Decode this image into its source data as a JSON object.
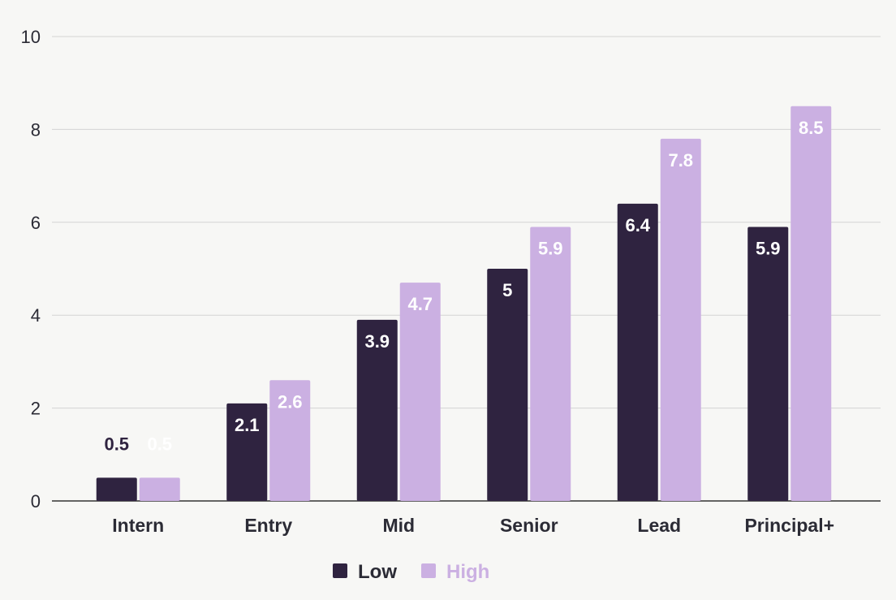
{
  "chart_data": {
    "type": "bar",
    "categories": [
      "Intern",
      "Entry",
      "Mid",
      "Senior",
      "Lead",
      "Principal+"
    ],
    "series": [
      {
        "name": "Low",
        "values": [
          0.5,
          2.1,
          3.9,
          5,
          6.4,
          5.9
        ],
        "color": "#2f2340"
      },
      {
        "name": "High",
        "values": [
          0.5,
          2.6,
          4.7,
          5.9,
          7.8,
          8.5
        ],
        "color": "#cbb0e2"
      }
    ],
    "yticks": [
      "0",
      "2",
      "4",
      "6",
      "8",
      "10"
    ],
    "ylim": [
      0,
      10
    ],
    "grid": true,
    "legend_position": "bottom-center",
    "data_labels": true
  },
  "colors": {
    "background": "#f7f7f5",
    "grid": "#d4d4d4",
    "axis": "#333333",
    "text": "#2b2b35",
    "label_on_bar": "#ffffff"
  }
}
